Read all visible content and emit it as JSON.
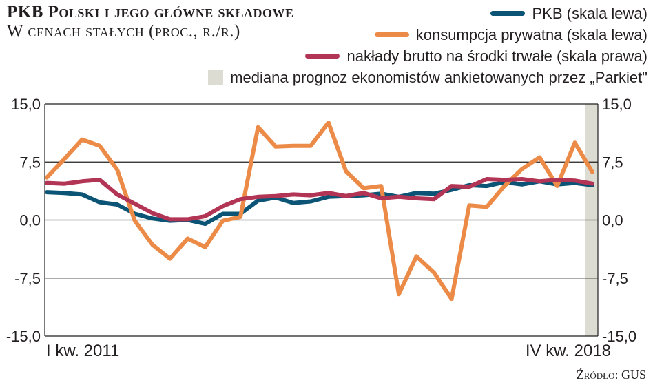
{
  "header": {
    "title": "PKB Polski i jego główne składowe",
    "subtitle": "W cenach stałych (proc., r./r.)"
  },
  "legend": [
    {
      "label": "PKB (skala lewa)",
      "color": "#0b5475",
      "kind": "line"
    },
    {
      "label": "konsumpcja prywatna (skala lewa)",
      "color": "#ec8b48",
      "kind": "line"
    },
    {
      "label": "nakłady brutto na środki trwałe (skala prawa)",
      "color": "#b33556",
      "kind": "line"
    },
    {
      "label": "mediana prognoz ekonomistów ankietowanych przez „Parkiet\"",
      "color": "#dcdcd3",
      "kind": "box"
    }
  ],
  "source": "Źródło: GUS",
  "chart_data": {
    "type": "line",
    "title": "PKB Polski i jego główne składowe",
    "xlabel": "",
    "ylabel_left": "",
    "ylabel_right": "",
    "x_first_label": "I kw. 2011",
    "x_last_label": "IV kw. 2018",
    "n_points": 32,
    "ylim": [
      -15,
      15
    ],
    "ylim_right": [
      -15,
      15
    ],
    "yticks": [
      "15,0",
      "7,5",
      "0,0",
      "-7,5",
      "-15,0"
    ],
    "ytick_values": [
      15,
      7.5,
      0,
      -7.5,
      -15
    ],
    "forecast_region_start_index": 31,
    "grid": true,
    "series": [
      {
        "name": "PKB (skala lewa)",
        "color": "#0b5475",
        "axis": "left",
        "values": [
          3.6,
          3.5,
          3.3,
          2.3,
          2.0,
          0.8,
          0.2,
          -0.1,
          0.0,
          -0.5,
          0.8,
          0.8,
          2.5,
          2.9,
          2.2,
          2.4,
          3.0,
          3.1,
          3.2,
          3.4,
          3.0,
          3.5,
          3.4,
          3.9,
          4.5,
          4.4,
          4.9,
          4.6,
          5.0,
          4.6,
          4.8,
          4.5
        ]
      },
      {
        "name": "konsumpcja prywatna (skala lewa)",
        "color": "#ec8b48",
        "axis": "left",
        "values": [
          5.5,
          7.9,
          10.4,
          9.6,
          6.5,
          -0.1,
          -3.2,
          -5.0,
          -2.4,
          -3.5,
          -0.1,
          0.4,
          12.0,
          9.5,
          9.6,
          9.6,
          12.6,
          6.3,
          4.1,
          4.4,
          -9.6,
          -4.7,
          -6.8,
          -10.2,
          1.9,
          1.7,
          4.4,
          6.6,
          8.1,
          4.4,
          10.0,
          6.2
        ]
      },
      {
        "name": "nakłady brutto na środki trwałe (skala prawa)",
        "color": "#b33556",
        "axis": "right",
        "values": [
          4.8,
          4.7,
          5.0,
          5.2,
          3.3,
          2.1,
          0.9,
          0.1,
          0.1,
          0.5,
          1.8,
          2.7,
          3.0,
          3.1,
          3.3,
          3.2,
          3.5,
          3.1,
          3.5,
          2.8,
          3.0,
          2.8,
          2.7,
          4.4,
          4.3,
          5.3,
          5.2,
          5.3,
          5.0,
          5.2,
          5.1,
          4.7
        ]
      }
    ]
  }
}
